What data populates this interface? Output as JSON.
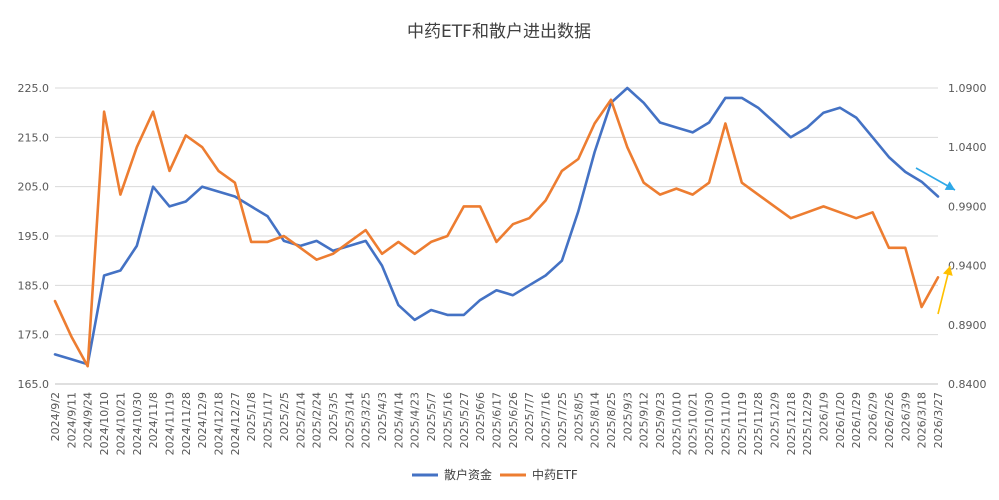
{
  "chart_data": {
    "type": "line",
    "title": "中药ETF和散户进出数据",
    "xlabel": "",
    "ylabel": "",
    "x": [
      "2024/9/2",
      "2024/9/11",
      "2024/9/24",
      "2024/10/10",
      "2024/10/21",
      "2024/10/30",
      "2024/11/8",
      "2024/11/19",
      "2024/11/28",
      "2024/12/9",
      "2024/12/18",
      "2024/12/27",
      "2025/1/8",
      "2025/1/17",
      "2025/2/5",
      "2025/2/14",
      "2025/2/24",
      "2025/3/5",
      "2025/3/14",
      "2025/3/25",
      "2025/4/3",
      "2025/4/14",
      "2025/4/23",
      "2025/5/7",
      "2025/5/16",
      "2025/5/27",
      "2025/6/6",
      "2025/6/17",
      "2025/6/26",
      "2025/7/7",
      "2025/7/16",
      "2025/7/25",
      "2025/8/5",
      "2025/8/14",
      "2025/8/25",
      "2025/9/3",
      "2025/9/12",
      "2025/9/23",
      "2025/10/10",
      "2025/10/21",
      "2025/10/30",
      "2025/11/10",
      "2025/11/19",
      "2025/11/28",
      "2025/12/9",
      "2025/12/18",
      "2025/12/29",
      "2026/1/9",
      "2026/1/20",
      "2026/1/29",
      "2026/2/9",
      "2026/2/26",
      "2026/3/9",
      "2026/3/18",
      "2026/3/27"
    ],
    "y_left": {
      "min": 165.0,
      "max": 225.0,
      "ticks": [
        "165.0",
        "175.0",
        "185.0",
        "195.0",
        "205.0",
        "215.0",
        "225.0"
      ]
    },
    "y_right": {
      "min": 0.84,
      "max": 1.09,
      "ticks": [
        "0.8400",
        "0.8900",
        "0.9400",
        "0.9900",
        "1.0400",
        "1.0900"
      ]
    },
    "series": [
      {
        "name": "散户资金",
        "axis": "left",
        "color": "#4472C4",
        "values": [
          171,
          170,
          169,
          187,
          188,
          193,
          205,
          201,
          202,
          205,
          204,
          203,
          201,
          199,
          194,
          193,
          194,
          192,
          193,
          194,
          189,
          181,
          178,
          180,
          179,
          179,
          182,
          184,
          183,
          185,
          187,
          190,
          200,
          212,
          222,
          225,
          222,
          218,
          217,
          216,
          218,
          223,
          223,
          221,
          218,
          215,
          217,
          220,
          221,
          219,
          215,
          211,
          208,
          206,
          203
        ]
      },
      {
        "name": "中药ETF",
        "axis": "right",
        "color": "#ED7D31",
        "values": [
          0.91,
          0.88,
          0.855,
          1.07,
          1.0,
          1.04,
          1.07,
          1.02,
          1.05,
          1.04,
          1.02,
          1.01,
          0.96,
          0.96,
          0.965,
          0.955,
          0.945,
          0.95,
          0.96,
          0.97,
          0.95,
          0.96,
          0.95,
          0.96,
          0.965,
          0.99,
          0.99,
          0.96,
          0.975,
          0.98,
          0.995,
          1.02,
          1.03,
          1.06,
          1.08,
          1.04,
          1.01,
          1.0,
          1.005,
          1.0,
          1.01,
          1.06,
          1.01,
          1.0,
          0.99,
          0.98,
          0.985,
          0.99,
          0.985,
          0.98,
          0.985,
          0.955,
          0.955,
          0.905,
          0.93
        ]
      }
    ],
    "annotations": [
      {
        "shape": "arrow",
        "color": "#2EA8E8",
        "points_to": "right axis ~1.0"
      },
      {
        "shape": "arrow",
        "color": "#FFC000",
        "points_to": "right axis ~0.94"
      }
    ],
    "grid": true,
    "legend_position": "bottom"
  }
}
